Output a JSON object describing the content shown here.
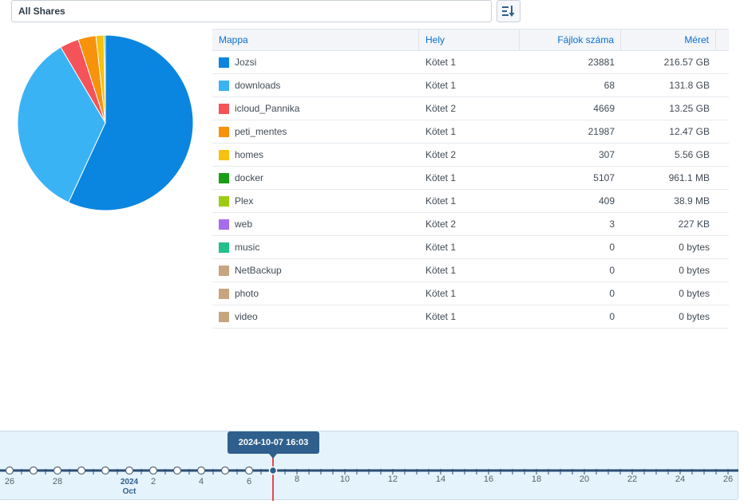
{
  "share_select": {
    "value": "All Shares"
  },
  "sort_button": {
    "icon": "sort-icon"
  },
  "table": {
    "headers": {
      "folder": "Mappa",
      "location": "Hely",
      "file_count": "Fájlok száma",
      "size": "Méret"
    },
    "rows": [
      {
        "folder": "Jozsi",
        "location": "Kötet 1",
        "file_count": "23881",
        "size": "216.57 GB",
        "color": "#0a86e0"
      },
      {
        "folder": "downloads",
        "location": "Kötet 1",
        "file_count": "68",
        "size": "131.8 GB",
        "color": "#3ab3f5"
      },
      {
        "folder": "icloud_Pannika",
        "location": "Kötet 2",
        "file_count": "4669",
        "size": "13.25 GB",
        "color": "#f5525a"
      },
      {
        "folder": "peti_mentes",
        "location": "Kötet 1",
        "file_count": "21987",
        "size": "12.47 GB",
        "color": "#f7920c"
      },
      {
        "folder": "homes",
        "location": "Kötet 2",
        "file_count": "307",
        "size": "5.56 GB",
        "color": "#f7c10d"
      },
      {
        "folder": "docker",
        "location": "Kötet 1",
        "file_count": "5107",
        "size": "961.1 MB",
        "color": "#1a9f14"
      },
      {
        "folder": "Plex",
        "location": "Kötet 1",
        "file_count": "409",
        "size": "38.9 MB",
        "color": "#9ccc12"
      },
      {
        "folder": "web",
        "location": "Kötet 2",
        "file_count": "3",
        "size": "227 KB",
        "color": "#a66df0"
      },
      {
        "folder": "music",
        "location": "Kötet 1",
        "file_count": "0",
        "size": "0 bytes",
        "color": "#22c08a"
      },
      {
        "folder": "NetBackup",
        "location": "Kötet 1",
        "file_count": "0",
        "size": "0 bytes",
        "color": "#c8a481"
      },
      {
        "folder": "photo",
        "location": "Kötet 1",
        "file_count": "0",
        "size": "0 bytes",
        "color": "#c8a481"
      },
      {
        "folder": "video",
        "location": "Kötet 1",
        "file_count": "0",
        "size": "0 bytes",
        "color": "#c8a481"
      }
    ]
  },
  "pie_gb": [
    216.57,
    131.8,
    13.25,
    12.47,
    5.56,
    0.9611,
    0.0389,
    0.000227,
    0,
    0,
    0,
    0
  ],
  "timeline": {
    "tooltip": "2024-10-07 16:03",
    "year_label": "2024",
    "month_label": "Oct",
    "tick_labels": [
      "26",
      "28",
      "2",
      "4",
      "6",
      "8",
      "10",
      "12",
      "14",
      "16",
      "18",
      "20",
      "22",
      "24",
      "26"
    ],
    "selected_color": "#e8474f",
    "accent_color": "#2f5f8c"
  }
}
